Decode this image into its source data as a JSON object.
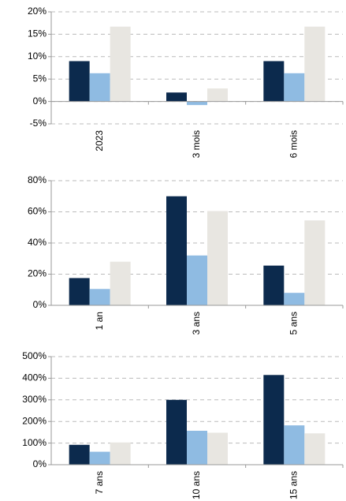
{
  "chart_data": [
    {
      "type": "bar",
      "categories": [
        "2023",
        "3 mois",
        "6 mois"
      ],
      "series": [
        {
          "color": "#0c2a4d",
          "values": [
            9,
            2,
            9
          ]
        },
        {
          "color": "#8fbbe2",
          "values": [
            6.3,
            -0.8,
            6.3
          ]
        },
        {
          "color": "#e8e6e1",
          "values": [
            16.7,
            2.9,
            16.7
          ]
        }
      ],
      "ylim": [
        -5,
        20
      ],
      "yticks": [
        {
          "value": -5,
          "label": "-5%"
        },
        {
          "value": 0,
          "label": "0%"
        },
        {
          "value": 5,
          "label": "5%"
        },
        {
          "value": 10,
          "label": "10%"
        },
        {
          "value": 15,
          "label": "15%"
        },
        {
          "value": 20,
          "label": "20%"
        }
      ],
      "grid": true
    },
    {
      "type": "bar",
      "categories": [
        "1 an",
        "3 ans",
        "5 ans"
      ],
      "series": [
        {
          "color": "#0c2a4d",
          "values": [
            17.5,
            70,
            25.5
          ]
        },
        {
          "color": "#8fbbe2",
          "values": [
            10.5,
            32,
            8
          ]
        },
        {
          "color": "#e8e6e1",
          "values": [
            28,
            60.5,
            54.5
          ]
        }
      ],
      "ylim": [
        0,
        80
      ],
      "yticks": [
        {
          "value": 0,
          "label": "0%"
        },
        {
          "value": 20,
          "label": "20%"
        },
        {
          "value": 40,
          "label": "40%"
        },
        {
          "value": 60,
          "label": "60%"
        },
        {
          "value": 80,
          "label": "80%"
        }
      ],
      "grid": true
    },
    {
      "type": "bar",
      "categories": [
        "7 ans",
        "10 ans",
        "15 ans"
      ],
      "series": [
        {
          "color": "#0c2a4d",
          "values": [
            92,
            300,
            415
          ]
        },
        {
          "color": "#8fbbe2",
          "values": [
            60,
            157,
            182
          ]
        },
        {
          "color": "#e8e6e1",
          "values": [
            103,
            148,
            145
          ]
        }
      ],
      "ylim": [
        0,
        500
      ],
      "yticks": [
        {
          "value": 0,
          "label": "0%"
        },
        {
          "value": 100,
          "label": "100%"
        },
        {
          "value": 200,
          "label": "200%"
        },
        {
          "value": 300,
          "label": "300%"
        },
        {
          "value": 400,
          "label": "400%"
        },
        {
          "value": 500,
          "label": "500%"
        }
      ],
      "grid": true
    }
  ]
}
